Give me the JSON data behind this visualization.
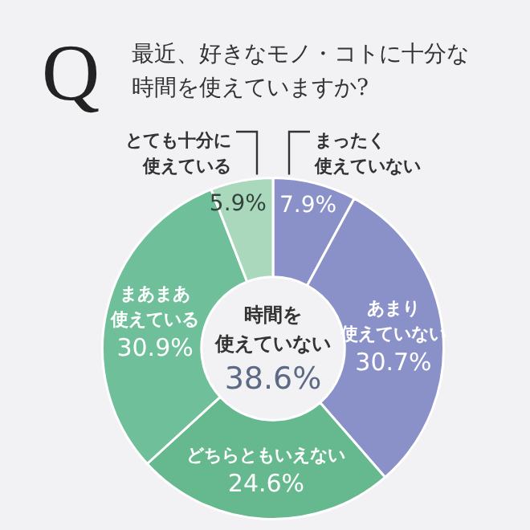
{
  "chart_data": {
    "type": "donut",
    "title": "最近、好きなモノ・コトに十分な時間を使えていますか?",
    "categories": [
      "まったく使えていない",
      "あまり使えていない",
      "どちらともいえない",
      "まあまあ使えている",
      "とても十分に使えている"
    ],
    "values": [
      7.9,
      30.7,
      24.6,
      30.9,
      5.9
    ],
    "value_labels": [
      "7.9%",
      "30.7%",
      "24.6%",
      "30.9%",
      "5.9%"
    ],
    "colors": [
      "#8a90c8",
      "#8a90c8",
      "#66b98f",
      "#6fc09a",
      "#aad8bd"
    ],
    "annotations": [
      "Q",
      "時間を使えていない",
      "38.6%"
    ],
    "legend": false
  }
}
